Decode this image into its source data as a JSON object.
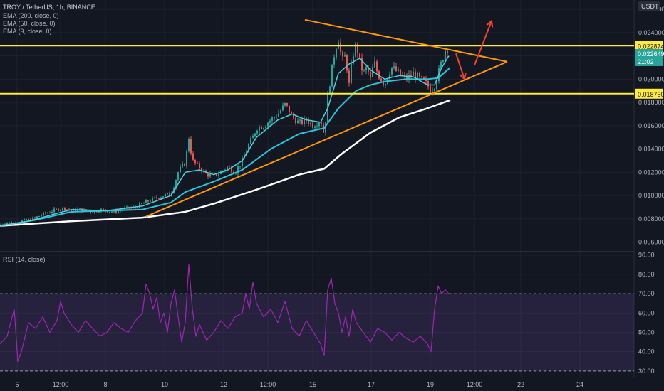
{
  "header": {
    "symbol_line": "TROY / TetherUS, 1h, BINANCE",
    "indicators": [
      "EMA (200, close, 0)",
      "EMA (50, close, 0)",
      "EMA (9, close, 0)"
    ],
    "currency": "USDT"
  },
  "rsi_panel": {
    "label": "RSI (14, close)"
  },
  "colors": {
    "background": "#131722",
    "grid": "#1e222d",
    "axis_text": "#b2b5be",
    "candle_up": "#26a69a",
    "candle_down": "#ef5350",
    "ema200": "#ffffff",
    "ema50": "#26c6da",
    "ema9": "#4dd0e1",
    "level_line": "#ffeb3b",
    "trendline": "#ff9800",
    "arrow": "#f44336",
    "rsi_line": "#9c27b0",
    "rsi_band": "#7e57c2"
  },
  "chart_data": [
    {
      "type": "candlestick",
      "title": "TROY / TetherUS, 1h, BINANCE",
      "x_tick_labels": [
        "5",
        "12:00",
        "8",
        "10",
        "12",
        "12:00",
        "15",
        "17",
        "19",
        "12:00",
        "22",
        "24"
      ],
      "y_tick_labels": [
        "0.0260000",
        "0.0240000",
        "0.0220000",
        "0.0200000",
        "0.0180000",
        "0.0160000",
        "0.0140000",
        "0.0120000",
        "0.0100000",
        "0.0080000",
        "0.0060000"
      ],
      "ylim": [
        0.0053,
        0.0268
      ],
      "horizontal_levels": [
        {
          "value": 0.022874,
          "label": "0.0228740"
        },
        {
          "value": 0.0187509,
          "label": "0.0187509"
        }
      ],
      "current_price": {
        "value": 0.0226499,
        "label": "0.0226499",
        "countdown": "21:02"
      },
      "price_path": [
        [
          0,
          0.0075
        ],
        [
          10,
          0.0077
        ],
        [
          20,
          0.0076
        ],
        [
          30,
          0.0078
        ],
        [
          40,
          0.0079
        ],
        [
          50,
          0.0081
        ],
        [
          60,
          0.0084
        ],
        [
          70,
          0.0086
        ],
        [
          80,
          0.0088
        ],
        [
          90,
          0.0089
        ],
        [
          100,
          0.0087
        ],
        [
          110,
          0.0088
        ],
        [
          120,
          0.0087
        ],
        [
          130,
          0.0086
        ],
        [
          140,
          0.0088
        ],
        [
          150,
          0.0087
        ],
        [
          160,
          0.0086
        ],
        [
          170,
          0.0088
        ],
        [
          180,
          0.0089
        ],
        [
          190,
          0.009
        ],
        [
          200,
          0.0093
        ],
        [
          210,
          0.0096
        ],
        [
          220,
          0.0098
        ],
        [
          230,
          0.01
        ],
        [
          240,
          0.0102
        ],
        [
          245,
          0.011
        ],
        [
          250,
          0.012
        ],
        [
          255,
          0.0125
        ],
        [
          260,
          0.0128
        ],
        [
          265,
          0.015
        ],
        [
          270,
          0.013
        ],
        [
          275,
          0.0127
        ],
        [
          280,
          0.0124
        ],
        [
          290,
          0.0118
        ],
        [
          300,
          0.0117
        ],
        [
          310,
          0.012
        ],
        [
          320,
          0.0125
        ],
        [
          330,
          0.012
        ],
        [
          340,
          0.013
        ],
        [
          345,
          0.0137
        ],
        [
          350,
          0.0145
        ],
        [
          355,
          0.015
        ],
        [
          360,
          0.0158
        ],
        [
          370,
          0.016
        ],
        [
          380,
          0.0165
        ],
        [
          390,
          0.017
        ],
        [
          400,
          0.0178
        ],
        [
          405,
          0.0174
        ],
        [
          410,
          0.0168
        ],
        [
          420,
          0.0162
        ],
        [
          430,
          0.0165
        ],
        [
          440,
          0.016
        ],
        [
          450,
          0.0165
        ],
        [
          455,
          0.0152
        ],
        [
          460,
          0.0185
        ],
        [
          465,
          0.0205
        ],
        [
          470,
          0.0225
        ],
        [
          475,
          0.0235
        ],
        [
          480,
          0.0215
        ],
        [
          485,
          0.022
        ],
        [
          490,
          0.0195
        ],
        [
          495,
          0.022
        ],
        [
          500,
          0.023
        ],
        [
          505,
          0.0215
        ],
        [
          510,
          0.0205
        ],
        [
          515,
          0.021
        ],
        [
          520,
          0.02
        ],
        [
          525,
          0.0215
        ],
        [
          530,
          0.0205
        ],
        [
          535,
          0.02
        ],
        [
          540,
          0.0195
        ],
        [
          545,
          0.0205
        ],
        [
          550,
          0.021
        ],
        [
          560,
          0.0205
        ],
        [
          570,
          0.02
        ],
        [
          580,
          0.0205
        ],
        [
          590,
          0.02
        ],
        [
          600,
          0.0195
        ],
        [
          605,
          0.019
        ],
        [
          610,
          0.0195
        ],
        [
          615,
          0.0205
        ],
        [
          620,
          0.0215
        ],
        [
          625,
          0.0225
        ],
        [
          630,
          0.0228
        ]
      ],
      "ema9": [
        [
          0,
          0.0074
        ],
        [
          40,
          0.0078
        ],
        [
          100,
          0.0088
        ],
        [
          150,
          0.0087
        ],
        [
          200,
          0.0091
        ],
        [
          240,
          0.01
        ],
        [
          260,
          0.012
        ],
        [
          280,
          0.0122
        ],
        [
          300,
          0.0118
        ],
        [
          320,
          0.0122
        ],
        [
          340,
          0.013
        ],
        [
          360,
          0.015
        ],
        [
          390,
          0.0165
        ],
        [
          410,
          0.017
        ],
        [
          430,
          0.0165
        ],
        [
          450,
          0.0163
        ],
        [
          460,
          0.0175
        ],
        [
          475,
          0.0205
        ],
        [
          490,
          0.0213
        ],
        [
          505,
          0.0218
        ],
        [
          520,
          0.0208
        ],
        [
          540,
          0.02
        ],
        [
          560,
          0.0203
        ],
        [
          580,
          0.0202
        ],
        [
          600,
          0.0195
        ],
        [
          610,
          0.0195
        ],
        [
          620,
          0.021
        ],
        [
          630,
          0.022
        ]
      ],
      "ema50": [
        [
          0,
          0.0074
        ],
        [
          50,
          0.0079
        ],
        [
          100,
          0.0086
        ],
        [
          150,
          0.0087
        ],
        [
          200,
          0.0088
        ],
        [
          240,
          0.0094
        ],
        [
          260,
          0.0103
        ],
        [
          300,
          0.0112
        ],
        [
          340,
          0.0122
        ],
        [
          380,
          0.014
        ],
        [
          420,
          0.0153
        ],
        [
          455,
          0.0158
        ],
        [
          475,
          0.0175
        ],
        [
          500,
          0.019
        ],
        [
          520,
          0.0195
        ],
        [
          540,
          0.0198
        ],
        [
          570,
          0.02
        ],
        [
          600,
          0.02
        ],
        [
          615,
          0.0201
        ],
        [
          632,
          0.021
        ]
      ],
      "ema200": [
        [
          0,
          0.0074
        ],
        [
          100,
          0.0078
        ],
        [
          200,
          0.0081
        ],
        [
          260,
          0.0086
        ],
        [
          300,
          0.0093
        ],
        [
          360,
          0.0105
        ],
        [
          420,
          0.0118
        ],
        [
          455,
          0.0123
        ],
        [
          480,
          0.0136
        ],
        [
          520,
          0.0154
        ],
        [
          560,
          0.0167
        ],
        [
          600,
          0.0175
        ],
        [
          632,
          0.0182
        ]
      ],
      "trendlines": [
        {
          "from": [
            205,
            0.0082
          ],
          "to": [
            712,
            0.0215
          ]
        },
        {
          "from": [
            428,
            0.0251
          ],
          "to": [
            712,
            0.0215
          ]
        }
      ],
      "arrows": [
        {
          "from": [
            640,
            0.0222
          ],
          "to": [
            652,
            0.02
          ]
        },
        {
          "from": [
            666,
            0.0212
          ],
          "to": [
            690,
            0.025
          ]
        }
      ]
    },
    {
      "type": "line",
      "title": "RSI (14, close)",
      "y_tick_labels": [
        "90.00",
        "80.00",
        "70.00",
        "60.00",
        "50.00",
        "40.00",
        "30.00"
      ],
      "ylim": [
        27,
        91
      ],
      "bands": [
        70,
        30
      ],
      "rsi": [
        [
          0,
          44
        ],
        [
          10,
          48
        ],
        [
          20,
          62
        ],
        [
          25,
          35
        ],
        [
          30,
          40
        ],
        [
          40,
          55
        ],
        [
          50,
          52
        ],
        [
          60,
          58
        ],
        [
          70,
          50
        ],
        [
          80,
          56
        ],
        [
          85,
          66
        ],
        [
          90,
          60
        ],
        [
          100,
          54
        ],
        [
          110,
          50
        ],
        [
          120,
          56
        ],
        [
          130,
          52
        ],
        [
          140,
          48
        ],
        [
          150,
          50
        ],
        [
          160,
          55
        ],
        [
          170,
          52
        ],
        [
          180,
          50
        ],
        [
          190,
          56
        ],
        [
          200,
          60
        ],
        [
          205,
          75
        ],
        [
          210,
          70
        ],
        [
          215,
          62
        ],
        [
          220,
          68
        ],
        [
          225,
          55
        ],
        [
          230,
          60
        ],
        [
          235,
          50
        ],
        [
          240,
          65
        ],
        [
          245,
          72
        ],
        [
          250,
          58
        ],
        [
          255,
          45
        ],
        [
          260,
          55
        ],
        [
          265,
          85
        ],
        [
          270,
          62
        ],
        [
          275,
          48
        ],
        [
          280,
          54
        ],
        [
          290,
          46
        ],
        [
          300,
          50
        ],
        [
          310,
          56
        ],
        [
          320,
          52
        ],
        [
          330,
          58
        ],
        [
          340,
          60
        ],
        [
          345,
          70
        ],
        [
          350,
          62
        ],
        [
          355,
          76
        ],
        [
          360,
          65
        ],
        [
          370,
          58
        ],
        [
          380,
          62
        ],
        [
          390,
          55
        ],
        [
          400,
          66
        ],
        [
          410,
          52
        ],
        [
          420,
          48
        ],
        [
          430,
          56
        ],
        [
          440,
          50
        ],
        [
          450,
          44
        ],
        [
          455,
          38
        ],
        [
          460,
          72
        ],
        [
          465,
          78
        ],
        [
          470,
          65
        ],
        [
          475,
          60
        ],
        [
          480,
          50
        ],
        [
          485,
          58
        ],
        [
          490,
          48
        ],
        [
          495,
          62
        ],
        [
          500,
          55
        ],
        [
          510,
          50
        ],
        [
          520,
          45
        ],
        [
          530,
          52
        ],
        [
          540,
          50
        ],
        [
          550,
          46
        ],
        [
          560,
          50
        ],
        [
          570,
          47
        ],
        [
          580,
          45
        ],
        [
          590,
          48
        ],
        [
          600,
          44
        ],
        [
          605,
          40
        ],
        [
          610,
          62
        ],
        [
          615,
          74
        ],
        [
          620,
          70
        ],
        [
          625,
          72
        ],
        [
          630,
          70
        ]
      ]
    }
  ]
}
